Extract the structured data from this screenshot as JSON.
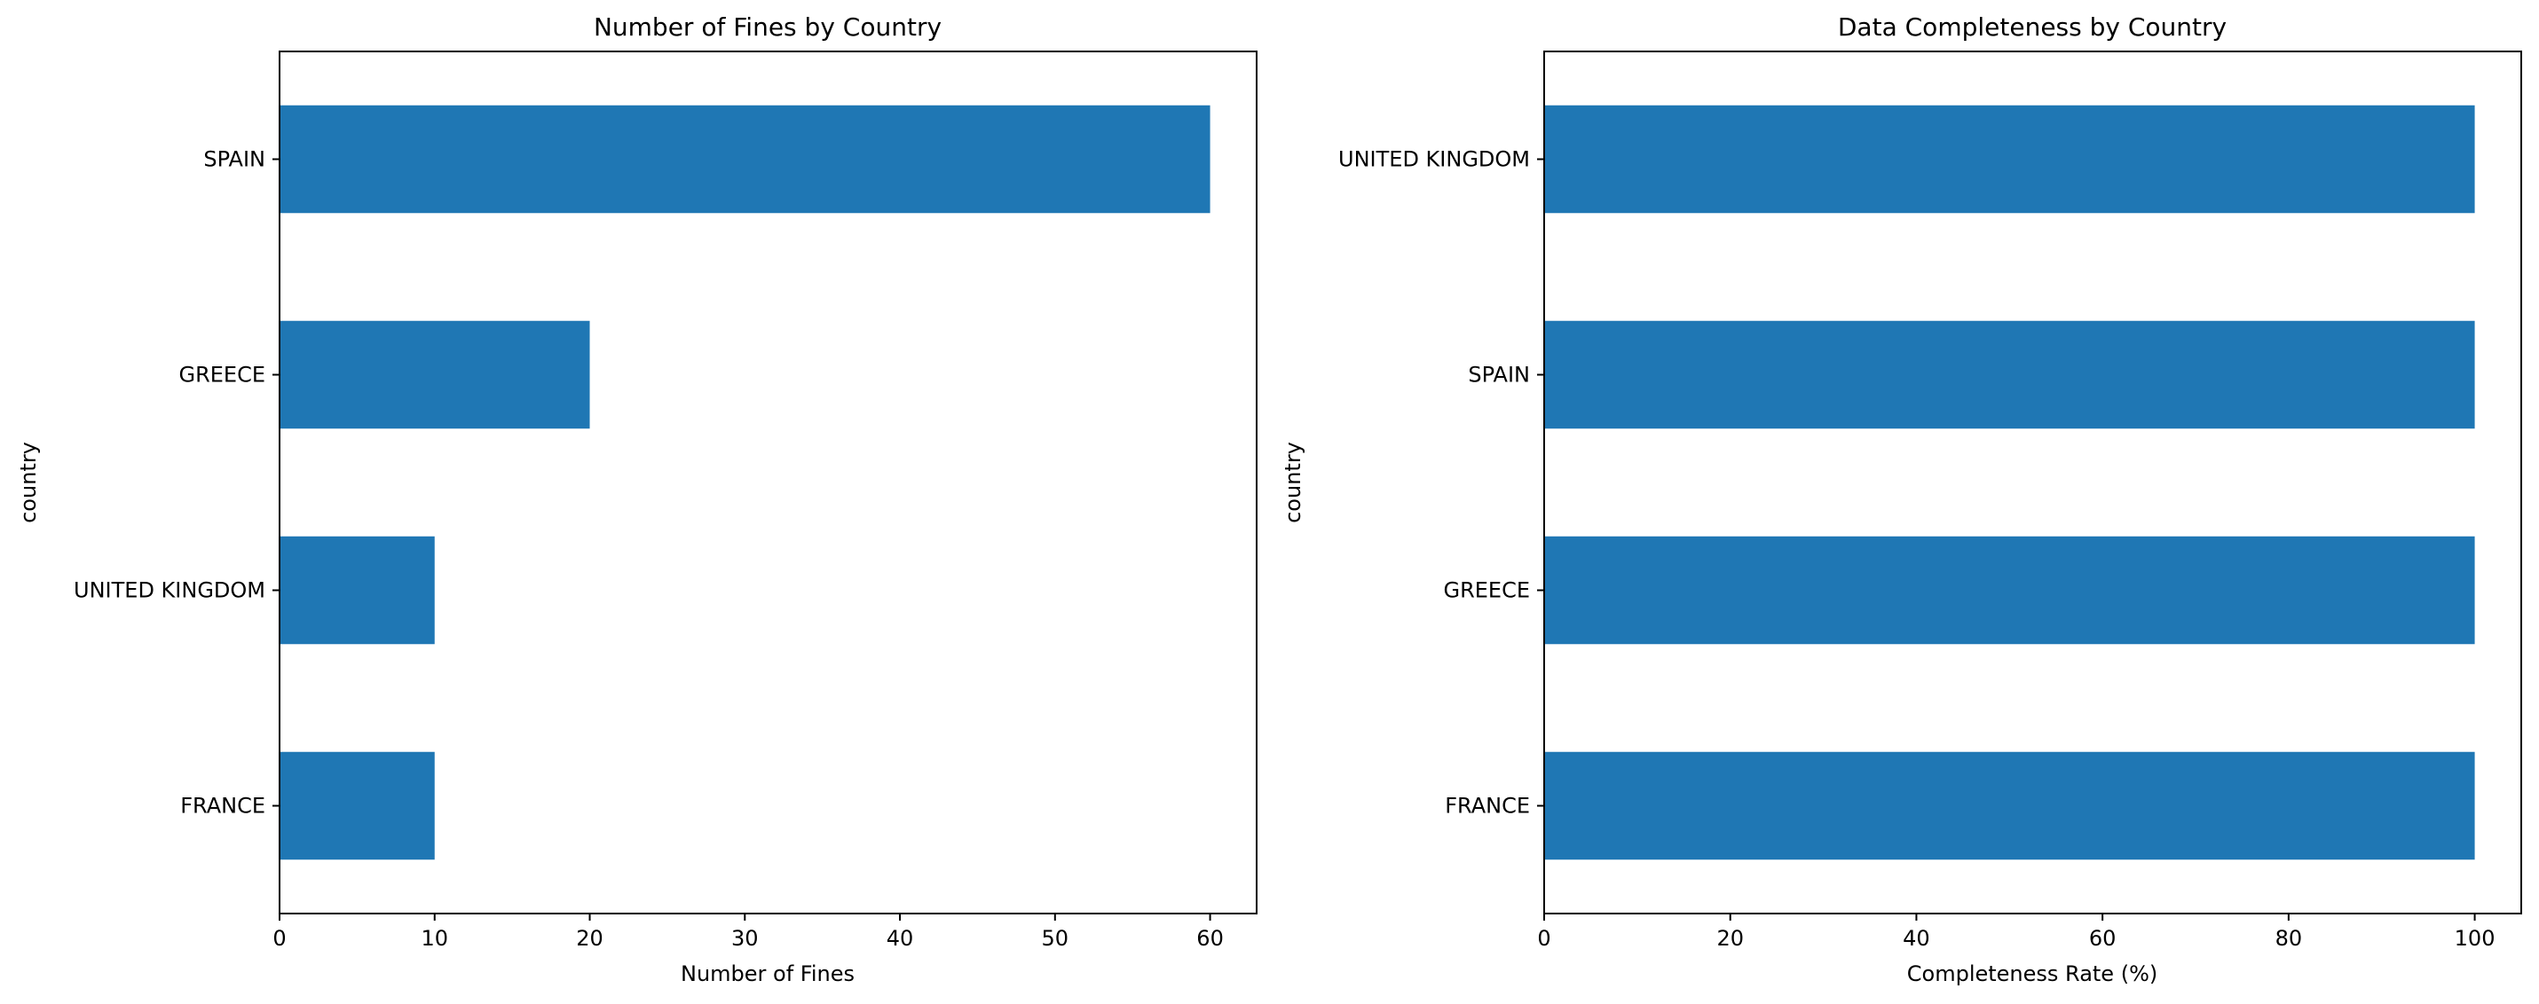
{
  "chart_data": [
    {
      "type": "bar",
      "orientation": "horizontal",
      "title": "Number of Fines by Country",
      "xlabel": "Number of Fines",
      "ylabel": "country",
      "categories": [
        "FRANCE",
        "UNITED KINGDOM",
        "GREECE",
        "SPAIN"
      ],
      "values": [
        10,
        10,
        20,
        60
      ],
      "xlim": [
        0,
        63
      ],
      "xticks": [
        0,
        10,
        20,
        30,
        40,
        50,
        60
      ],
      "grid": false,
      "bar_color": "#1f77b4"
    },
    {
      "type": "bar",
      "orientation": "horizontal",
      "title": "Data Completeness by Country",
      "xlabel": "Completeness Rate (%)",
      "ylabel": "country",
      "categories": [
        "FRANCE",
        "GREECE",
        "SPAIN",
        "UNITED KINGDOM"
      ],
      "values": [
        100,
        100,
        100,
        100
      ],
      "xlim": [
        0,
        105
      ],
      "xticks": [
        0,
        20,
        40,
        60,
        80,
        100
      ],
      "grid": false,
      "bar_color": "#1f77b4"
    }
  ]
}
